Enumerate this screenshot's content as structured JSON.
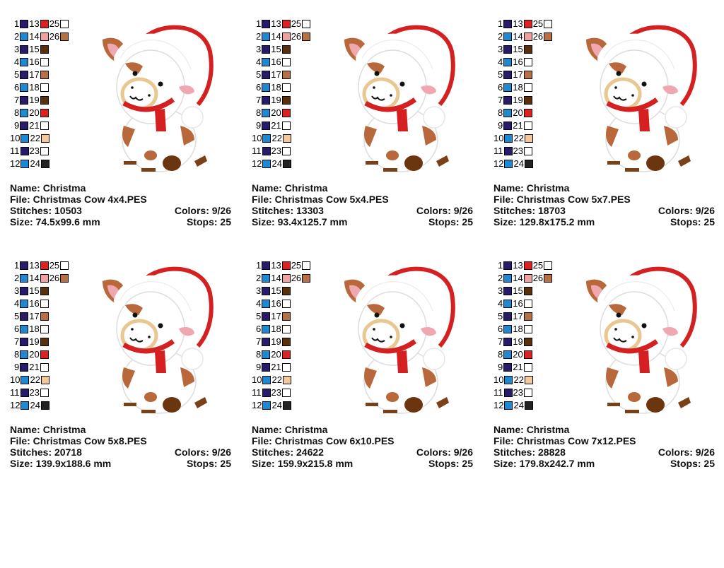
{
  "palette": {
    "1": "#2a1a6e",
    "2": "#1a8ad4",
    "3": "#2a1a6e",
    "4": "#1a8ad4",
    "5": "#2a1a6e",
    "6": "#1a8ad4",
    "7": "#2a1a6e",
    "8": "#1a8ad4",
    "9": "#2a1a6e",
    "10": "#1a8ad4",
    "11": "#2a1a6e",
    "12": "#1a8ad4",
    "13": "#e02020",
    "14": "#f0a0a0",
    "15": "#5a3008",
    "16": "#ffffff",
    "17": "#b87040",
    "18": "#ffffff",
    "19": "#5a3008",
    "20": "#e02020",
    "21": "#ffffff",
    "22": "#f5c898",
    "23": "#ffffff",
    "24": "#222222",
    "25": "#ffffff",
    "26": "#b87040"
  },
  "labels": {
    "name": "Name:",
    "file": "File:",
    "stitches": "Stitches:",
    "colors": "Colors:",
    "size": "Size:",
    "stops": "Stops:"
  },
  "designs": [
    {
      "name": "Christma",
      "file": "Christmas Cow 4x4.PES",
      "stitches": "10503",
      "colors": "9/26",
      "size": "74.5x99.6 mm",
      "stops": "25"
    },
    {
      "name": "Christma",
      "file": "Christmas Cow 5x4.PES",
      "stitches": "13303",
      "colors": "9/26",
      "size": "93.4x125.7 mm",
      "stops": "25"
    },
    {
      "name": "Christma",
      "file": "Christmas Cow 5x7.PES",
      "stitches": "18703",
      "colors": "9/26",
      "size": "129.8x175.2 mm",
      "stops": "25"
    },
    {
      "name": "Christma",
      "file": "Christmas Cow 5x8.PES",
      "stitches": "20718",
      "colors": "9/26",
      "size": "139.9x188.6 mm",
      "stops": "25"
    },
    {
      "name": "Christma",
      "file": "Christmas Cow 6x10.PES",
      "stitches": "24622",
      "colors": "9/26",
      "size": "159.9x215.8 mm",
      "stops": "25"
    },
    {
      "name": "Christma",
      "file": "Christmas Cow 7x12.PES",
      "stitches": "28828",
      "colors": "9/26",
      "size": "179.8x242.7 mm",
      "stops": "25"
    }
  ]
}
